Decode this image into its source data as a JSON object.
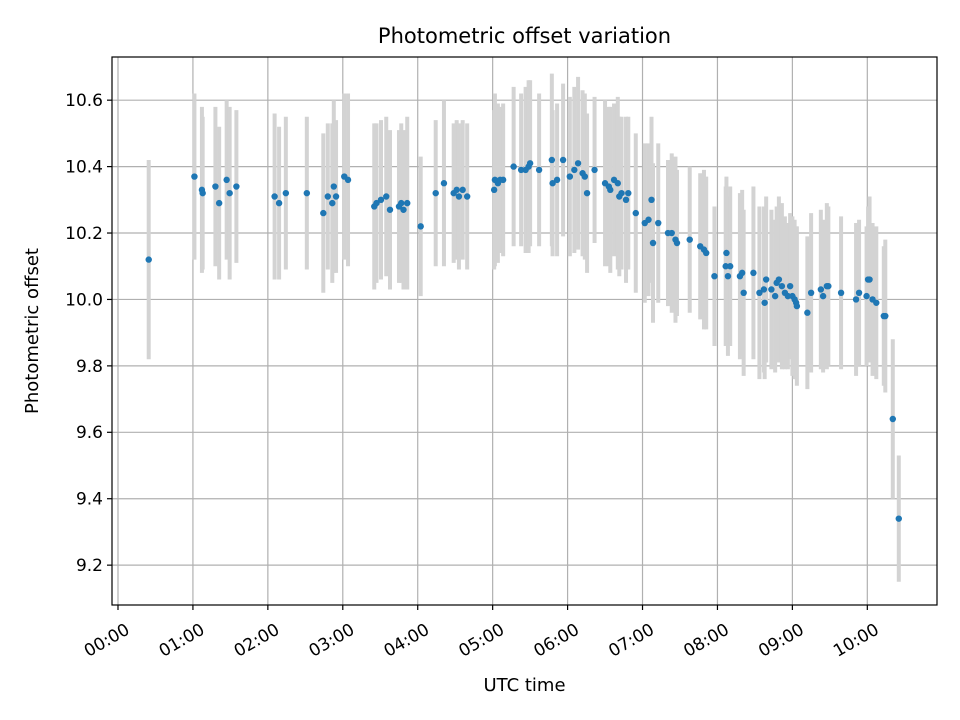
{
  "chart_data": {
    "type": "scatter",
    "title": "Photometric offset variation",
    "xlabel": "UTC time",
    "ylabel": "Photometric offset",
    "x_unit": "hours UTC",
    "xlim": [
      -0.08,
      10.93
    ],
    "ylim": [
      9.08,
      10.73
    ],
    "grid": true,
    "x_ticks": [
      {
        "value": 0,
        "label": "00:00"
      },
      {
        "value": 1,
        "label": "01:00"
      },
      {
        "value": 2,
        "label": "02:00"
      },
      {
        "value": 3,
        "label": "03:00"
      },
      {
        "value": 4,
        "label": "04:00"
      },
      {
        "value": 5,
        "label": "05:00"
      },
      {
        "value": 6,
        "label": "06:00"
      },
      {
        "value": 7,
        "label": "07:00"
      },
      {
        "value": 8,
        "label": "08:00"
      },
      {
        "value": 9,
        "label": "09:00"
      },
      {
        "value": 10,
        "label": "10:00"
      }
    ],
    "y_ticks": [
      {
        "value": 9.2,
        "label": "9.2"
      },
      {
        "value": 9.4,
        "label": "9.4"
      },
      {
        "value": 9.6,
        "label": "9.6"
      },
      {
        "value": 9.8,
        "label": "9.8"
      },
      {
        "value": 10.0,
        "label": "10.0"
      },
      {
        "value": 10.2,
        "label": "10.2"
      },
      {
        "value": 10.4,
        "label": "10.4"
      },
      {
        "value": 10.6,
        "label": "10.6"
      }
    ],
    "point_color": "#1f77b4",
    "errorbar_color": "#d3d3d3",
    "series": [
      {
        "name": "Photometric offset",
        "points": [
          {
            "x": 0.41,
            "y": 10.12,
            "err": 0.3
          },
          {
            "x": 1.02,
            "y": 10.37,
            "err": 0.25
          },
          {
            "x": 1.12,
            "y": 10.33,
            "err": 0.25
          },
          {
            "x": 1.13,
            "y": 10.32,
            "err": 0.23
          },
          {
            "x": 1.3,
            "y": 10.34,
            "err": 0.24
          },
          {
            "x": 1.35,
            "y": 10.29,
            "err": 0.23
          },
          {
            "x": 1.45,
            "y": 10.36,
            "err": 0.24
          },
          {
            "x": 1.49,
            "y": 10.32,
            "err": 0.26
          },
          {
            "x": 1.58,
            "y": 10.34,
            "err": 0.23
          },
          {
            "x": 2.09,
            "y": 10.31,
            "err": 0.25
          },
          {
            "x": 2.15,
            "y": 10.29,
            "err": 0.23
          },
          {
            "x": 2.24,
            "y": 10.32,
            "err": 0.23
          },
          {
            "x": 2.52,
            "y": 10.32,
            "err": 0.23
          },
          {
            "x": 2.74,
            "y": 10.26,
            "err": 0.24
          },
          {
            "x": 2.8,
            "y": 10.31,
            "err": 0.22
          },
          {
            "x": 2.86,
            "y": 10.29,
            "err": 0.24
          },
          {
            "x": 2.88,
            "y": 10.34,
            "err": 0.26
          },
          {
            "x": 2.91,
            "y": 10.31,
            "err": 0.23
          },
          {
            "x": 3.02,
            "y": 10.37,
            "err": 0.25
          },
          {
            "x": 3.07,
            "y": 10.36,
            "err": 0.26
          },
          {
            "x": 3.42,
            "y": 10.28,
            "err": 0.25
          },
          {
            "x": 3.45,
            "y": 10.29,
            "err": 0.24
          },
          {
            "x": 3.51,
            "y": 10.3,
            "err": 0.24
          },
          {
            "x": 3.58,
            "y": 10.31,
            "err": 0.24
          },
          {
            "x": 3.63,
            "y": 10.27,
            "err": 0.24
          },
          {
            "x": 3.75,
            "y": 10.28,
            "err": 0.23
          },
          {
            "x": 3.78,
            "y": 10.29,
            "err": 0.24
          },
          {
            "x": 3.81,
            "y": 10.27,
            "err": 0.24
          },
          {
            "x": 3.86,
            "y": 10.29,
            "err": 0.26
          },
          {
            "x": 4.04,
            "y": 10.22,
            "err": 0.21
          },
          {
            "x": 4.24,
            "y": 10.32,
            "err": 0.22
          },
          {
            "x": 4.35,
            "y": 10.35,
            "err": 0.25
          },
          {
            "x": 4.48,
            "y": 10.32,
            "err": 0.21
          },
          {
            "x": 4.52,
            "y": 10.33,
            "err": 0.21
          },
          {
            "x": 4.55,
            "y": 10.31,
            "err": 0.22
          },
          {
            "x": 4.6,
            "y": 10.33,
            "err": 0.21
          },
          {
            "x": 4.66,
            "y": 10.31,
            "err": 0.22
          },
          {
            "x": 5.02,
            "y": 10.33,
            "err": 0.24
          },
          {
            "x": 5.03,
            "y": 10.36,
            "err": 0.26
          },
          {
            "x": 5.07,
            "y": 10.35,
            "err": 0.24
          },
          {
            "x": 5.1,
            "y": 10.36,
            "err": 0.22
          },
          {
            "x": 5.14,
            "y": 10.36,
            "err": 0.23
          },
          {
            "x": 5.28,
            "y": 10.4,
            "err": 0.24
          },
          {
            "x": 5.38,
            "y": 10.39,
            "err": 0.23
          },
          {
            "x": 5.44,
            "y": 10.39,
            "err": 0.25
          },
          {
            "x": 5.48,
            "y": 10.4,
            "err": 0.26
          },
          {
            "x": 5.5,
            "y": 10.41,
            "err": 0.25
          },
          {
            "x": 5.62,
            "y": 10.39,
            "err": 0.23
          },
          {
            "x": 5.79,
            "y": 10.42,
            "err": 0.26
          },
          {
            "x": 5.8,
            "y": 10.35,
            "err": 0.22
          },
          {
            "x": 5.86,
            "y": 10.36,
            "err": 0.23
          },
          {
            "x": 5.94,
            "y": 10.42,
            "err": 0.23
          },
          {
            "x": 6.03,
            "y": 10.37,
            "err": 0.24
          },
          {
            "x": 6.09,
            "y": 10.39,
            "err": 0.25
          },
          {
            "x": 6.14,
            "y": 10.41,
            "err": 0.26
          },
          {
            "x": 6.2,
            "y": 10.38,
            "err": 0.25
          },
          {
            "x": 6.23,
            "y": 10.37,
            "err": 0.25
          },
          {
            "x": 6.26,
            "y": 10.32,
            "err": 0.24
          },
          {
            "x": 6.36,
            "y": 10.39,
            "err": 0.22
          },
          {
            "x": 6.5,
            "y": 10.35,
            "err": 0.25
          },
          {
            "x": 6.55,
            "y": 10.34,
            "err": 0.24
          },
          {
            "x": 6.57,
            "y": 10.33,
            "err": 0.25
          },
          {
            "x": 6.62,
            "y": 10.36,
            "err": 0.23
          },
          {
            "x": 6.67,
            "y": 10.35,
            "err": 0.26
          },
          {
            "x": 6.69,
            "y": 10.31,
            "err": 0.24
          },
          {
            "x": 6.72,
            "y": 10.32,
            "err": 0.23
          },
          {
            "x": 6.78,
            "y": 10.3,
            "err": 0.25
          },
          {
            "x": 6.81,
            "y": 10.32,
            "err": 0.23
          },
          {
            "x": 6.91,
            "y": 10.26,
            "err": 0.24
          },
          {
            "x": 7.03,
            "y": 10.23,
            "err": 0.24
          },
          {
            "x": 7.08,
            "y": 10.24,
            "err": 0.23
          },
          {
            "x": 7.12,
            "y": 10.3,
            "err": 0.25
          },
          {
            "x": 7.14,
            "y": 10.17,
            "err": 0.24
          },
          {
            "x": 7.21,
            "y": 10.23,
            "err": 0.24
          },
          {
            "x": 7.34,
            "y": 10.2,
            "err": 0.22
          },
          {
            "x": 7.39,
            "y": 10.2,
            "err": 0.24
          },
          {
            "x": 7.44,
            "y": 10.18,
            "err": 0.25
          },
          {
            "x": 7.46,
            "y": 10.17,
            "err": 0.22
          },
          {
            "x": 7.63,
            "y": 10.18,
            "err": 0.22
          },
          {
            "x": 7.77,
            "y": 10.16,
            "err": 0.22
          },
          {
            "x": 7.82,
            "y": 10.15,
            "err": 0.24
          },
          {
            "x": 7.85,
            "y": 10.14,
            "err": 0.23
          },
          {
            "x": 7.96,
            "y": 10.07,
            "err": 0.21
          },
          {
            "x": 8.11,
            "y": 10.1,
            "err": 0.24
          },
          {
            "x": 8.12,
            "y": 10.14,
            "err": 0.23
          },
          {
            "x": 8.14,
            "y": 10.07,
            "err": 0.24
          },
          {
            "x": 8.17,
            "y": 10.1,
            "err": 0.24
          },
          {
            "x": 8.3,
            "y": 10.07,
            "err": 0.25
          },
          {
            "x": 8.33,
            "y": 10.08,
            "err": 0.25
          },
          {
            "x": 8.35,
            "y": 10.02,
            "err": 0.25
          },
          {
            "x": 8.48,
            "y": 10.08,
            "err": 0.26
          },
          {
            "x": 8.56,
            "y": 10.02,
            "err": 0.26
          },
          {
            "x": 8.62,
            "y": 10.03,
            "err": 0.25
          },
          {
            "x": 8.63,
            "y": 9.99,
            "err": 0.23
          },
          {
            "x": 8.65,
            "y": 10.06,
            "err": 0.25
          },
          {
            "x": 8.72,
            "y": 10.03,
            "err": 0.24
          },
          {
            "x": 8.77,
            "y": 10.01,
            "err": 0.23
          },
          {
            "x": 8.79,
            "y": 10.05,
            "err": 0.23
          },
          {
            "x": 8.82,
            "y": 10.06,
            "err": 0.25
          },
          {
            "x": 8.86,
            "y": 10.04,
            "err": 0.25
          },
          {
            "x": 8.9,
            "y": 10.02,
            "err": 0.23
          },
          {
            "x": 8.94,
            "y": 10.01,
            "err": 0.22
          },
          {
            "x": 8.97,
            "y": 10.04,
            "err": 0.22
          },
          {
            "x": 9.0,
            "y": 10.01,
            "err": 0.24
          },
          {
            "x": 9.03,
            "y": 10.0,
            "err": 0.24
          },
          {
            "x": 9.05,
            "y": 9.99,
            "err": 0.23
          },
          {
            "x": 9.06,
            "y": 9.98,
            "err": 0.24
          },
          {
            "x": 9.2,
            "y": 9.96,
            "err": 0.23
          },
          {
            "x": 9.25,
            "y": 10.02,
            "err": 0.24
          },
          {
            "x": 9.38,
            "y": 10.03,
            "err": 0.24
          },
          {
            "x": 9.41,
            "y": 10.01,
            "err": 0.23
          },
          {
            "x": 9.46,
            "y": 10.04,
            "err": 0.25
          },
          {
            "x": 9.48,
            "y": 10.04,
            "err": 0.24
          },
          {
            "x": 9.65,
            "y": 10.02,
            "err": 0.23
          },
          {
            "x": 9.85,
            "y": 10.0,
            "err": 0.23
          },
          {
            "x": 9.89,
            "y": 10.02,
            "err": 0.22
          },
          {
            "x": 9.99,
            "y": 10.01,
            "err": 0.21
          },
          {
            "x": 10.01,
            "y": 10.06,
            "err": 0.22
          },
          {
            "x": 10.03,
            "y": 10.06,
            "err": 0.25
          },
          {
            "x": 10.07,
            "y": 10.0,
            "err": 0.23
          },
          {
            "x": 10.12,
            "y": 9.99,
            "err": 0.23
          },
          {
            "x": 10.22,
            "y": 9.95,
            "err": 0.21
          },
          {
            "x": 10.24,
            "y": 9.95,
            "err": 0.23
          },
          {
            "x": 10.34,
            "y": 9.64,
            "err": 0.24
          },
          {
            "x": 10.42,
            "y": 9.34,
            "err": 0.19
          }
        ]
      }
    ]
  }
}
